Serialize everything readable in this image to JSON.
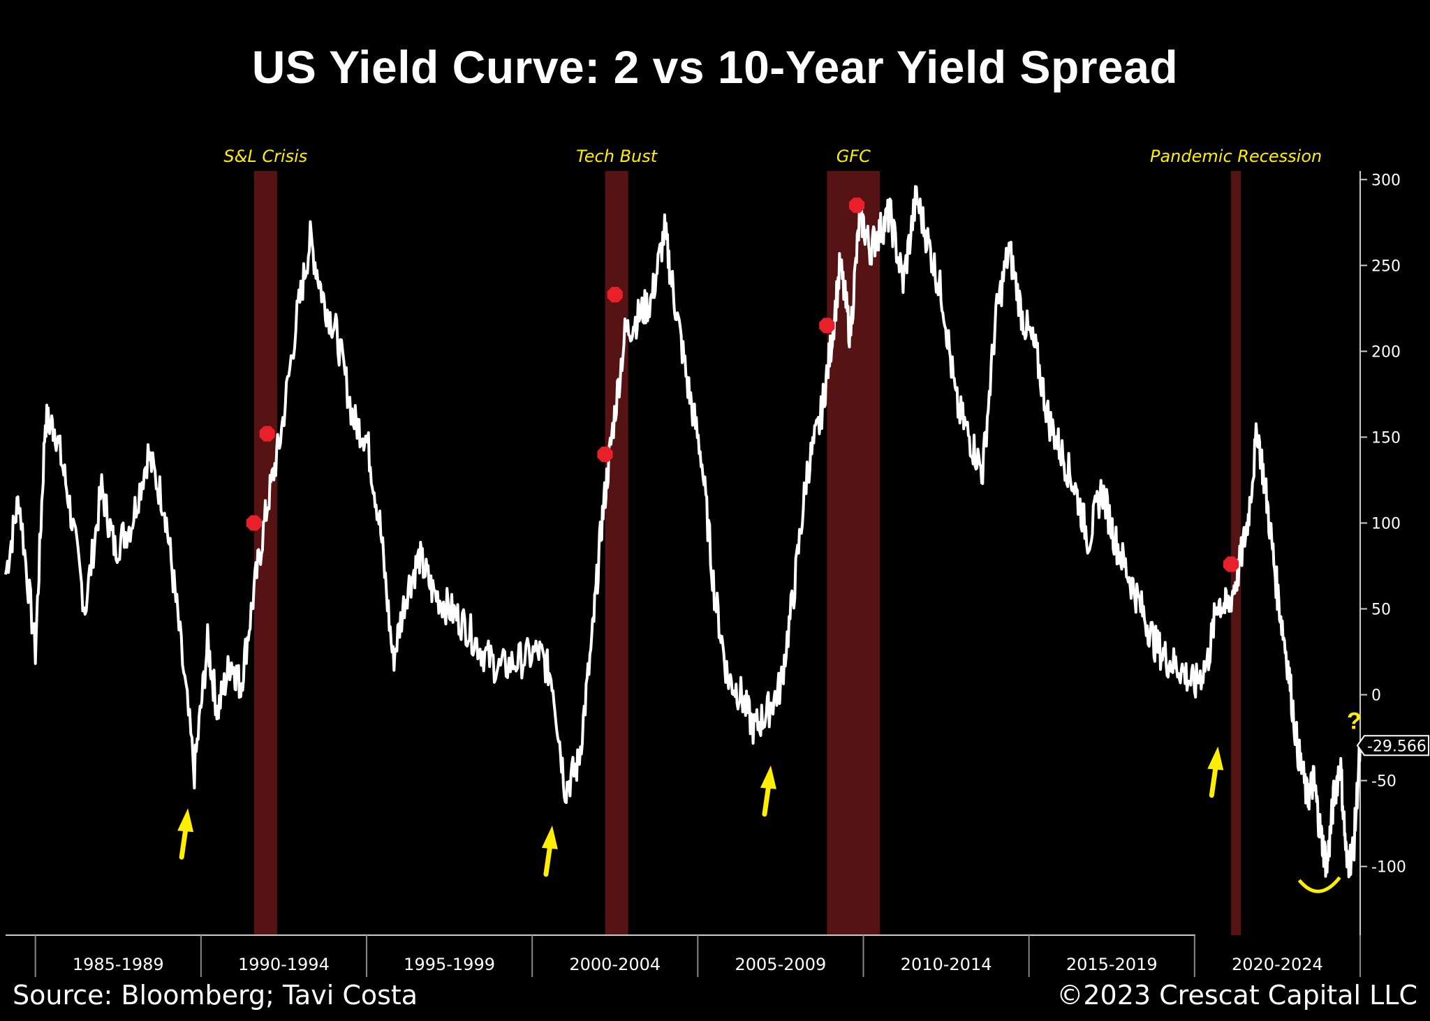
{
  "title": "US Yield Curve: 2 vs 10-Year Yield Spread",
  "footer": {
    "source": "Source: Bloomberg; Tavi Costa",
    "copyright": "©2023 Crescat Capital LLC"
  },
  "colors": {
    "background": "#000000",
    "line": "#ffffff",
    "recession_band": "#5a1414",
    "annotation": "#ffee00",
    "marker": "#e8202a"
  },
  "chart_data": {
    "type": "line",
    "title": "US Yield Curve: 2 vs 10-Year Yield Spread",
    "ylabel": "",
    "xlabel": "",
    "ylim": [
      -140,
      305
    ],
    "xlim": [
      1983.1,
      2024.0
    ],
    "y_ticks": [
      300,
      250,
      200,
      150,
      100,
      50,
      0,
      -50,
      -100
    ],
    "x_period_labels": [
      {
        "label": "1985-1989",
        "from": 1984,
        "to": 1989
      },
      {
        "label": "1990-1994",
        "from": 1989,
        "to": 1994
      },
      {
        "label": "1995-1999",
        "from": 1994,
        "to": 1999
      },
      {
        "label": "2000-2004",
        "from": 1999,
        "to": 2004
      },
      {
        "label": "2005-2009",
        "from": 2004,
        "to": 2009
      },
      {
        "label": "2010-2014",
        "from": 2009,
        "to": 2014
      },
      {
        "label": "2015-2019",
        "from": 2014,
        "to": 2019
      },
      {
        "label": "2020-2024",
        "from": 2019,
        "to": 2024
      }
    ],
    "recessions": [
      {
        "label": "S&L Crisis",
        "start": 1990.6,
        "end": 1991.3
      },
      {
        "label": "Tech Bust",
        "start": 2001.2,
        "end": 2001.9
      },
      {
        "label": "GFC",
        "start": 2007.9,
        "end": 2009.5
      },
      {
        "label": "Pandemic Recession",
        "start": 2020.1,
        "end": 2020.4
      }
    ],
    "last_value_label": "-29.566",
    "annotation_question": "?",
    "series": [
      {
        "name": "",
        "x": [
          1983.1,
          1983.5,
          1984.0,
          1984.3,
          1984.6,
          1985.0,
          1985.5,
          1986.0,
          1986.4,
          1986.9,
          1987.4,
          1987.9,
          1988.3,
          1988.8,
          1989.2,
          1989.5,
          1989.9,
          1990.2,
          1990.6,
          1991.0,
          1991.4,
          1991.9,
          1992.3,
          1992.7,
          1993.1,
          1993.6,
          1994.0,
          1994.4,
          1994.8,
          1995.2,
          1995.6,
          1996.0,
          1996.5,
          1997.0,
          1997.5,
          1998.0,
          1998.6,
          1999.2,
          1999.6,
          2000.0,
          2000.4,
          2000.8,
          2001.1,
          2001.4,
          2001.8,
          2002.2,
          2002.6,
          2003.0,
          2003.3,
          2003.7,
          2004.1,
          2004.5,
          2004.9,
          2005.3,
          2005.7,
          2006.1,
          2006.5,
          2006.9,
          2007.3,
          2007.7,
          2008.0,
          2008.3,
          2008.6,
          2008.9,
          2009.2,
          2009.5,
          2009.8,
          2010.2,
          2010.6,
          2011.0,
          2011.4,
          2011.8,
          2012.2,
          2012.6,
          2013.0,
          2013.4,
          2013.8,
          2014.2,
          2014.6,
          2015.0,
          2015.4,
          2015.8,
          2016.2,
          2016.6,
          2017.0,
          2017.4,
          2017.8,
          2018.2,
          2018.6,
          2019.0,
          2019.4,
          2019.7,
          2020.0,
          2020.3,
          2020.6,
          2020.9,
          2021.2,
          2021.5,
          2021.8,
          2022.1,
          2022.4,
          2022.6,
          2022.8,
          2023.0,
          2023.2,
          2023.4,
          2023.6,
          2023.8,
          2024.0
        ],
        "values": [
          70,
          115,
          25,
          160,
          155,
          115,
          50,
          120,
          85,
          100,
          140,
          110,
          45,
          -45,
          30,
          -10,
          20,
          5,
          60,
          110,
          150,
          220,
          265,
          230,
          210,
          160,
          150,
          100,
          20,
          60,
          80,
          60,
          50,
          40,
          25,
          15,
          20,
          25,
          10,
          -55,
          -40,
          30,
          100,
          150,
          210,
          220,
          230,
          270,
          230,
          180,
          140,
          60,
          10,
          0,
          -20,
          -10,
          5,
          60,
          130,
          160,
          200,
          250,
          210,
          280,
          260,
          270,
          280,
          240,
          290,
          260,
          230,
          170,
          150,
          130,
          220,
          260,
          220,
          200,
          160,
          140,
          120,
          90,
          120,
          90,
          70,
          50,
          30,
          20,
          15,
          5,
          20,
          55,
          50,
          70,
          100,
          155,
          110,
          60,
          20,
          -30,
          -60,
          -50,
          -80,
          -100,
          -60,
          -40,
          -100,
          -90,
          -30
        ]
      }
    ],
    "rec_markers": [
      {
        "x": 1990.6,
        "y": 100
      },
      {
        "x": 1991.0,
        "y": 152
      },
      {
        "x": 2001.2,
        "y": 140
      },
      {
        "x": 2001.5,
        "y": 233
      },
      {
        "x": 2007.9,
        "y": 215
      },
      {
        "x": 2008.8,
        "y": 285
      },
      {
        "x": 2020.1,
        "y": 76
      }
    ],
    "arrows": [
      {
        "x": 1988.5,
        "y": -58
      },
      {
        "x": 1999.5,
        "y": -68
      },
      {
        "x": 2006.1,
        "y": -33
      },
      {
        "x": 2019.6,
        "y": -22
      }
    ]
  }
}
